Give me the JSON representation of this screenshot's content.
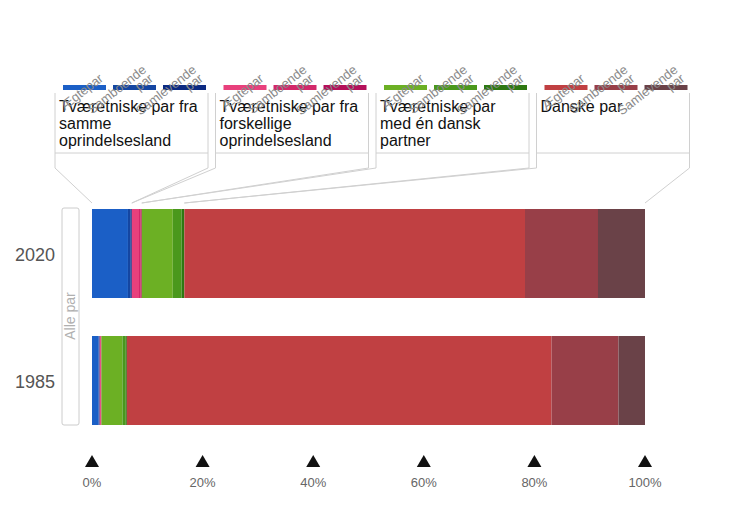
{
  "chart_data": {
    "type": "bar",
    "orientation": "horizontal",
    "stacked": true,
    "categories": [
      "2020",
      "1985"
    ],
    "ylabel": "Alle par",
    "xlim": [
      0,
      100
    ],
    "xticks": [
      {
        "value": 0,
        "label": "0%"
      },
      {
        "value": 20,
        "label": "20%"
      },
      {
        "value": 40,
        "label": "40%"
      },
      {
        "value": 60,
        "label": "60%"
      },
      {
        "value": 80,
        "label": "80%"
      },
      {
        "value": 100,
        "label": "100%"
      }
    ],
    "legend_groups": [
      "Tværetniske par fra samme oprindelsesland",
      "Tværetniske par fra forskellige oprindelsesland",
      "Tværetniske par med én dansk partner",
      "Danske par"
    ],
    "series": [
      {
        "name": "Ægtepar",
        "color": "#1b5fc6",
        "values": [
          6.5,
          1.2
        ]
      },
      {
        "name": "Samboende par",
        "color": "#1446a2",
        "values": [
          0.5,
          0.1
        ]
      },
      {
        "name": "Samlevende par",
        "color": "#0c2a82",
        "values": [
          0.2,
          0.1
        ]
      },
      {
        "name": "Ægtepar",
        "color": "#e8407c",
        "values": [
          1.3,
          0.2
        ]
      },
      {
        "name": "Samboende par",
        "color": "#d2286a",
        "values": [
          0.3,
          0.05
        ]
      },
      {
        "name": "Samlevende par",
        "color": "#b4105a",
        "values": [
          0.2,
          0.05
        ]
      },
      {
        "name": "Ægtepar",
        "color": "#6cb024",
        "values": [
          5.6,
          3.8
        ]
      },
      {
        "name": "Samboende par",
        "color": "#4a981c",
        "values": [
          1.6,
          0.6
        ]
      },
      {
        "name": "Samlevende par",
        "color": "#2e7812",
        "values": [
          0.5,
          0.2
        ]
      },
      {
        "name": "Ægtepar",
        "color": "#c04042",
        "values": [
          61.6,
          76.8
        ]
      },
      {
        "name": "Samboende par",
        "color": "#983f48",
        "values": [
          13.2,
          12.1
        ]
      },
      {
        "name": "Samlevende par",
        "color": "#6a4248",
        "values": [
          8.5,
          4.8
        ]
      }
    ]
  }
}
